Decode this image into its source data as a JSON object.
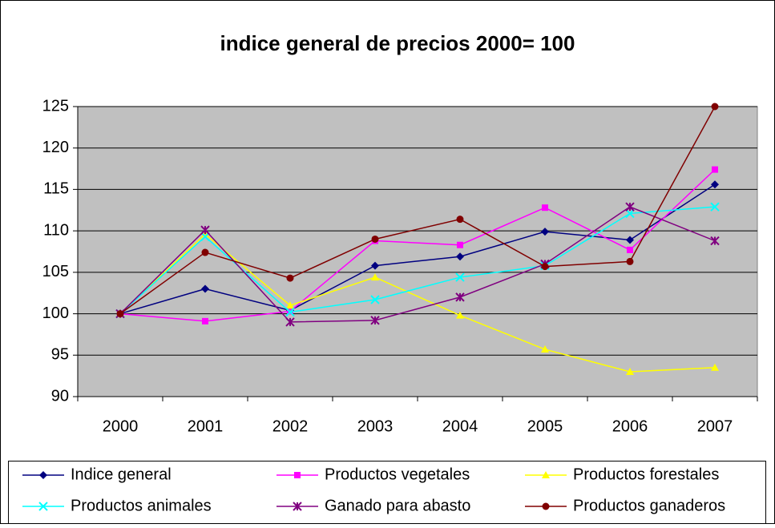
{
  "chart_data": {
    "type": "line",
    "title": "indice general de precios 2000= 100",
    "categories": [
      "2000",
      "2001",
      "2002",
      "2003",
      "2004",
      "2005",
      "2006",
      "2007"
    ],
    "series": [
      {
        "name": "Indice general",
        "color": "#000080",
        "marker": "diamond",
        "values": [
          100,
          103,
          100.4,
          105.8,
          106.9,
          109.9,
          108.9,
          115.6
        ]
      },
      {
        "name": "Productos vegetales",
        "color": "#ff00ff",
        "marker": "square",
        "values": [
          100,
          99.1,
          100.3,
          108.8,
          108.3,
          112.8,
          107.7,
          117.4
        ]
      },
      {
        "name": "Productos forestales",
        "color": "#ffff00",
        "marker": "triangle",
        "values": [
          100,
          109.6,
          101,
          104.4,
          99.8,
          95.7,
          93,
          93.5
        ]
      },
      {
        "name": "Productos animales",
        "color": "#00ffff",
        "marker": "x",
        "values": [
          100,
          109.3,
          100.2,
          101.7,
          104.4,
          105.8,
          112.1,
          112.9
        ]
      },
      {
        "name": "Ganado para abasto",
        "color": "#800080",
        "marker": "star",
        "values": [
          100,
          110.1,
          99,
          99.2,
          102,
          106,
          112.9,
          108.8
        ]
      },
      {
        "name": "Productos ganaderos",
        "color": "#800000",
        "marker": "circle",
        "values": [
          100,
          107.4,
          104.3,
          109,
          111.4,
          105.7,
          106.3,
          125
        ]
      }
    ],
    "ylim": [
      90,
      125
    ],
    "yticks": [
      90,
      95,
      100,
      105,
      110,
      115,
      120,
      125
    ],
    "grid": true,
    "legend": "bottom"
  }
}
